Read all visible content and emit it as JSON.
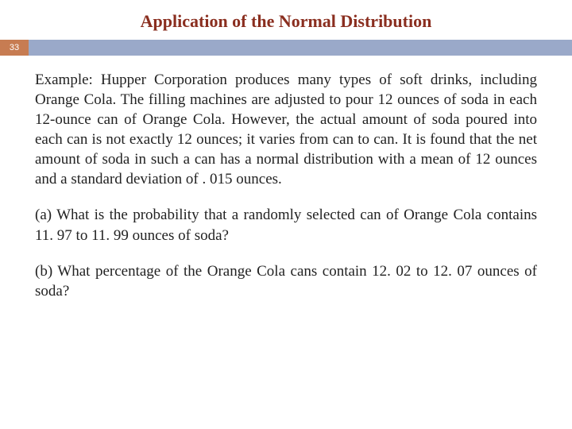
{
  "title": {
    "text": "Application of the Normal Distribution",
    "color": "#8a2e1f",
    "fontsize": 22
  },
  "page_number": "33",
  "bar": {
    "badge_bg": "#c77c52",
    "rest_bg": "#9aa9c9"
  },
  "body": {
    "color": "#222222",
    "fontsize": 19,
    "para1": "Example: Hupper Corporation produces many types of soft drinks, including Orange Cola. The filling machines are adjusted to pour 12 ounces of soda in each 12-ounce can of Orange Cola. However, the actual amount of soda poured into each can is not exactly 12 ounces; it varies from can to can. It is found that the net amount of soda in such a can has a normal distribution with a mean of 12 ounces and a standard deviation of . 015 ounces.",
    "para2": "(a) What is the probability that a randomly selected can of Orange Cola contains 11. 97 to 11. 99 ounces of soda?",
    "para3": "(b) What percentage of the Orange Cola cans contain 12. 02 to 12. 07 ounces of soda?"
  }
}
